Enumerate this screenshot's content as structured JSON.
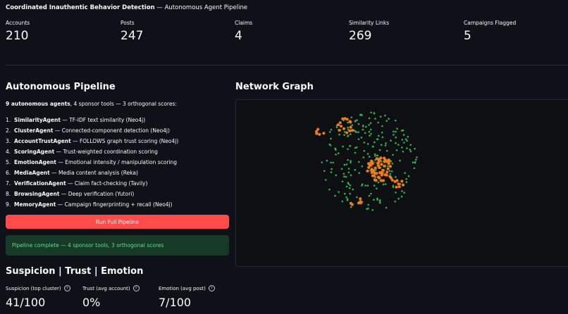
{
  "header": {
    "title": "Coordinated Inauthentic Behavior Detection",
    "suffix": " — Autonomous Agent Pipeline"
  },
  "metrics": [
    {
      "label": "Accounts",
      "value": "210"
    },
    {
      "label": "Posts",
      "value": "247"
    },
    {
      "label": "Claims",
      "value": "4"
    },
    {
      "label": "Similarity Links",
      "value": "269"
    },
    {
      "label": "Campaigns Flagged",
      "value": "5"
    }
  ],
  "pipeline": {
    "title": "Autonomous Pipeline",
    "summary_bold": "9 autonomous agents",
    "summary_rest": ", 4 sponsor tools — 3 orthogonal scores:",
    "agents": [
      {
        "num": "1.",
        "name": "SimilarityAgent",
        "desc": " — TF-IDF text similarity (Neo4j)"
      },
      {
        "num": "2.",
        "name": "ClusterAgent",
        "desc": " — Connected-component detection (Neo4j)"
      },
      {
        "num": "3.",
        "name": "AccountTrustAgent",
        "desc": " — FOLLOWS graph trust scoring (Neo4j)"
      },
      {
        "num": "4.",
        "name": "ScoringAgent",
        "desc": " — Trust-weighted coordination scoring"
      },
      {
        "num": "5.",
        "name": "EmotionAgent",
        "desc": " — Emotional intensity / manipulation scoring"
      },
      {
        "num": "6.",
        "name": "MediaAgent",
        "desc": " — Media content analysis (Reka)"
      },
      {
        "num": "7.",
        "name": "VerificationAgent",
        "desc": " — Claim fact-checking (Tavily)"
      },
      {
        "num": "8.",
        "name": "BrowsingAgent",
        "desc": " — Deep verification (Yutori)"
      },
      {
        "num": "9.",
        "name": "MemoryAgent",
        "desc": " — Campaign fingerprinting + recall (Neo4j)"
      }
    ],
    "run_button": "Run Full Pipeline",
    "status": "Pipeline complete — 4 sponsor tools, 3 orthogonal scores"
  },
  "network": {
    "title": "Network Graph",
    "colors": {
      "normal": "#33b04a",
      "flagged": "#f07c1a",
      "edge": "#a9552a"
    }
  },
  "scores": {
    "title": "Suspicion | Trust | Emotion",
    "help_icon": "?",
    "items": [
      {
        "label": "Suspicion (top cluster)",
        "value": "41/100"
      },
      {
        "label": "Trust (avg account)",
        "value": "0%"
      },
      {
        "label": "Emotion (avg post)",
        "value": "7/100"
      }
    ]
  }
}
